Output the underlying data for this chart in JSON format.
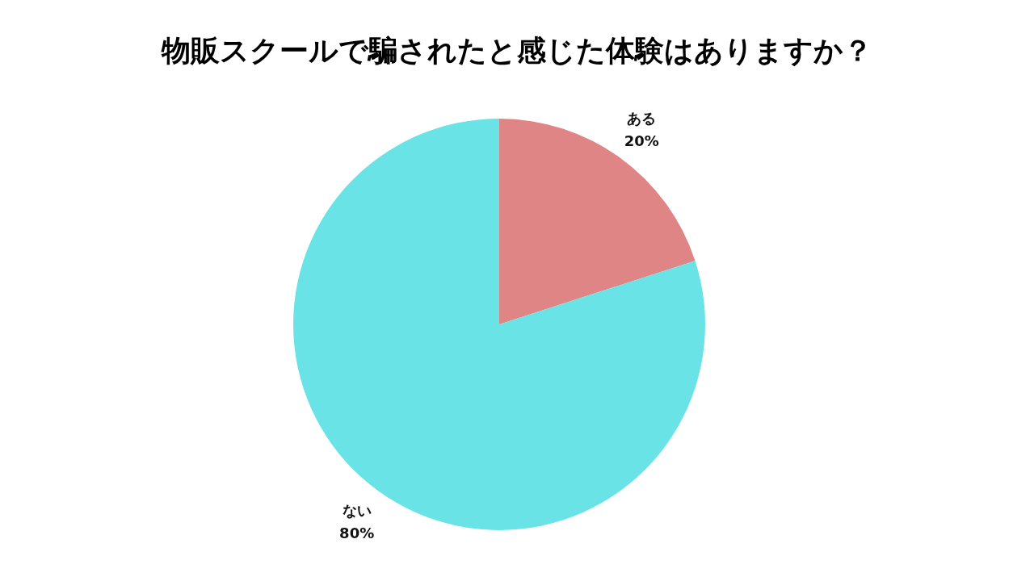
{
  "chart_data": {
    "type": "pie",
    "title": "物販スクールで騙されたと感じた体験はありますか？",
    "categories": [
      "ある",
      "ない"
    ],
    "values": [
      20,
      80
    ],
    "colors": [
      "#e08585",
      "#6ae3e7"
    ],
    "value_labels": [
      "20%",
      "80%"
    ]
  }
}
